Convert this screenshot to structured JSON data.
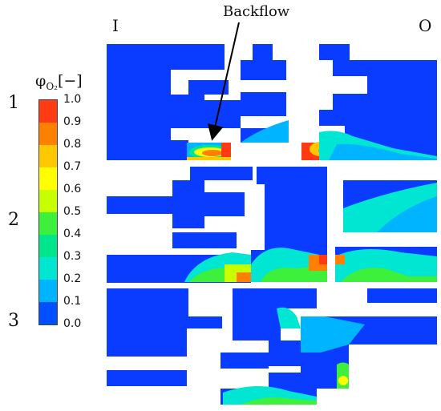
{
  "labels": {
    "inlet": "I",
    "outlet": "O",
    "backflow": "Backflow",
    "row1": "1",
    "row2": "2",
    "row3": "3"
  },
  "colorbar": {
    "symbol": "φ",
    "subscript": "O₂",
    "unit": "[−]",
    "ticks": [
      "1.0",
      "0.9",
      "0.8",
      "0.7",
      "0.6",
      "0.5",
      "0.4",
      "0.3",
      "0.2",
      "0.1",
      "0.0"
    ],
    "colors": [
      "#ff3b14",
      "#ff7f00",
      "#ffc800",
      "#ffff00",
      "#c8ff00",
      "#3cf03c",
      "#00e68c",
      "#00e6d2",
      "#00b4ff",
      "#0050ff",
      "#0a3cff"
    ]
  },
  "colors": {
    "fluid": "#0a3cff",
    "wall": "#ffffff",
    "arrow": "#000000"
  }
}
